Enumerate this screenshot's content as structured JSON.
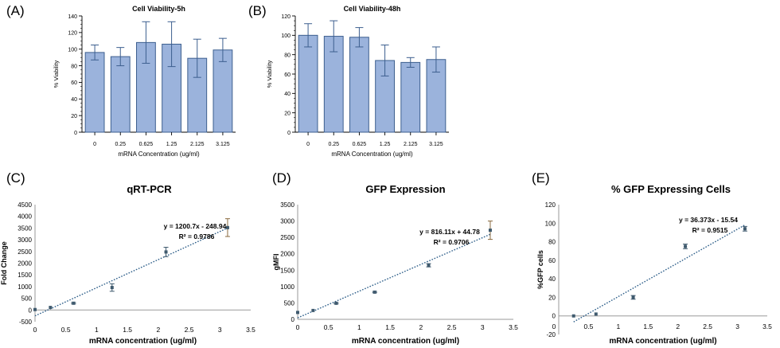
{
  "panels": [
    "(A)",
    "(B)",
    "(C)",
    "(D)",
    "(E)"
  ],
  "chart_data": [
    {
      "type": "bar",
      "id": "A",
      "title": "Cell Viability-5h",
      "xlabel": "mRNA  Concentration (ug/ml)",
      "ylabel": "% Viability",
      "categories": [
        "0",
        "0.25",
        "0.625",
        "1.25",
        "2.125",
        "3.125"
      ],
      "values": [
        96,
        91,
        108,
        106,
        89,
        99
      ],
      "error": [
        9,
        11,
        25,
        27,
        23,
        14
      ],
      "ylim": [
        0,
        140
      ],
      "yticks": [
        "0",
        "20",
        "40",
        "60",
        "80",
        "100",
        "120",
        "140"
      ],
      "bar_color": "#9bb3dc",
      "edge_color": "#3d5f8f"
    },
    {
      "type": "bar",
      "id": "B",
      "title": "Cell Viability-48h",
      "xlabel": "mRNA  Concentration (ug/ml)",
      "ylabel": "% Viability",
      "categories": [
        "0",
        "0.25",
        "0.625",
        "1.25",
        "2.125",
        "3.125"
      ],
      "values": [
        100,
        99,
        98,
        74,
        72,
        75
      ],
      "error": [
        12,
        16,
        10,
        16,
        5,
        13
      ],
      "ylim": [
        0,
        120
      ],
      "yticks": [
        "0",
        "20",
        "40",
        "60",
        "80",
        "100",
        "120"
      ],
      "bar_color": "#9bb3dc",
      "edge_color": "#3d5f8f"
    },
    {
      "type": "scatter",
      "id": "C",
      "title": "qRT-PCR",
      "xlabel": "mRNA concentration (ug/ml)",
      "ylabel": "Fold Change",
      "x": [
        0,
        0.25,
        0.625,
        1.25,
        2.125,
        3.125
      ],
      "y": [
        20,
        110,
        290,
        960,
        2480,
        3520
      ],
      "error": [
        10,
        20,
        30,
        160,
        200,
        380
      ],
      "xlim": [
        0,
        3.5
      ],
      "ylim": [
        -500,
        4500
      ],
      "xticks": [
        "0",
        "0.5",
        "1",
        "1.5",
        "2",
        "2.5",
        "3",
        "3.5"
      ],
      "yticks": [
        "-500",
        "0",
        "500",
        "1000",
        "1500",
        "2000",
        "2500",
        "3000",
        "3500",
        "4000",
        "4500"
      ],
      "trendline": {
        "slope": 1200.7,
        "intercept": -248.94,
        "x_range": [
          0,
          3.125
        ]
      },
      "equation": "y = 1200.7x - 248.94",
      "r2": "R² = 0.9786"
    },
    {
      "type": "scatter",
      "id": "D",
      "title": "GFP Expression",
      "xlabel": "mRNA concentration (ug/ml)",
      "ylabel": "gMFI",
      "x": [
        0,
        0.25,
        0.625,
        1.25,
        2.125,
        3.125
      ],
      "y": [
        210,
        270,
        490,
        830,
        1650,
        2720
      ],
      "error": [
        10,
        15,
        20,
        20,
        50,
        280
      ],
      "xlim": [
        0,
        3.5
      ],
      "ylim": [
        0,
        3500
      ],
      "xticks": [
        "0",
        "0.5",
        "1",
        "1.5",
        "2",
        "2.5",
        "3",
        "3.5"
      ],
      "yticks": [
        "0",
        "500",
        "1000",
        "1500",
        "2000",
        "2500",
        "3000",
        "3500"
      ],
      "trendline": {
        "slope": 816.11,
        "intercept": 44.78,
        "x_range": [
          0,
          3.125
        ]
      },
      "equation": "y = 816.11x + 44.78",
      "r2": "R² = 0.9706"
    },
    {
      "type": "scatter",
      "id": "E",
      "title": "% GFP Expressing Cells",
      "xlabel": "mRNA concentration (ug/ml)",
      "ylabel": "%GFP cells",
      "x": [
        0.25,
        0.625,
        1.25,
        2.125,
        3.125
      ],
      "y": [
        0,
        2,
        20,
        75,
        94
      ],
      "error": [
        0.5,
        0.5,
        2,
        2.5,
        2.5
      ],
      "xlim": [
        0,
        3.5
      ],
      "ylim": [
        -20,
        120
      ],
      "xticks": [
        "0",
        "0.5",
        "1",
        "1.5",
        "2",
        "2.5",
        "3",
        "3.5"
      ],
      "yticks": [
        "-20",
        "0",
        "20",
        "40",
        "60",
        "80",
        "100",
        "120"
      ],
      "trendline": {
        "slope": 36.373,
        "intercept": -15.54,
        "x_range": [
          0.25,
          3.125
        ]
      },
      "equation": "y = 36.373x - 15.54",
      "r2": "R² = 0.9515"
    }
  ],
  "colors": {
    "marker": "#3f5a6e",
    "trendline": "#2e5f8a",
    "last_error": "#8a6a3f"
  }
}
